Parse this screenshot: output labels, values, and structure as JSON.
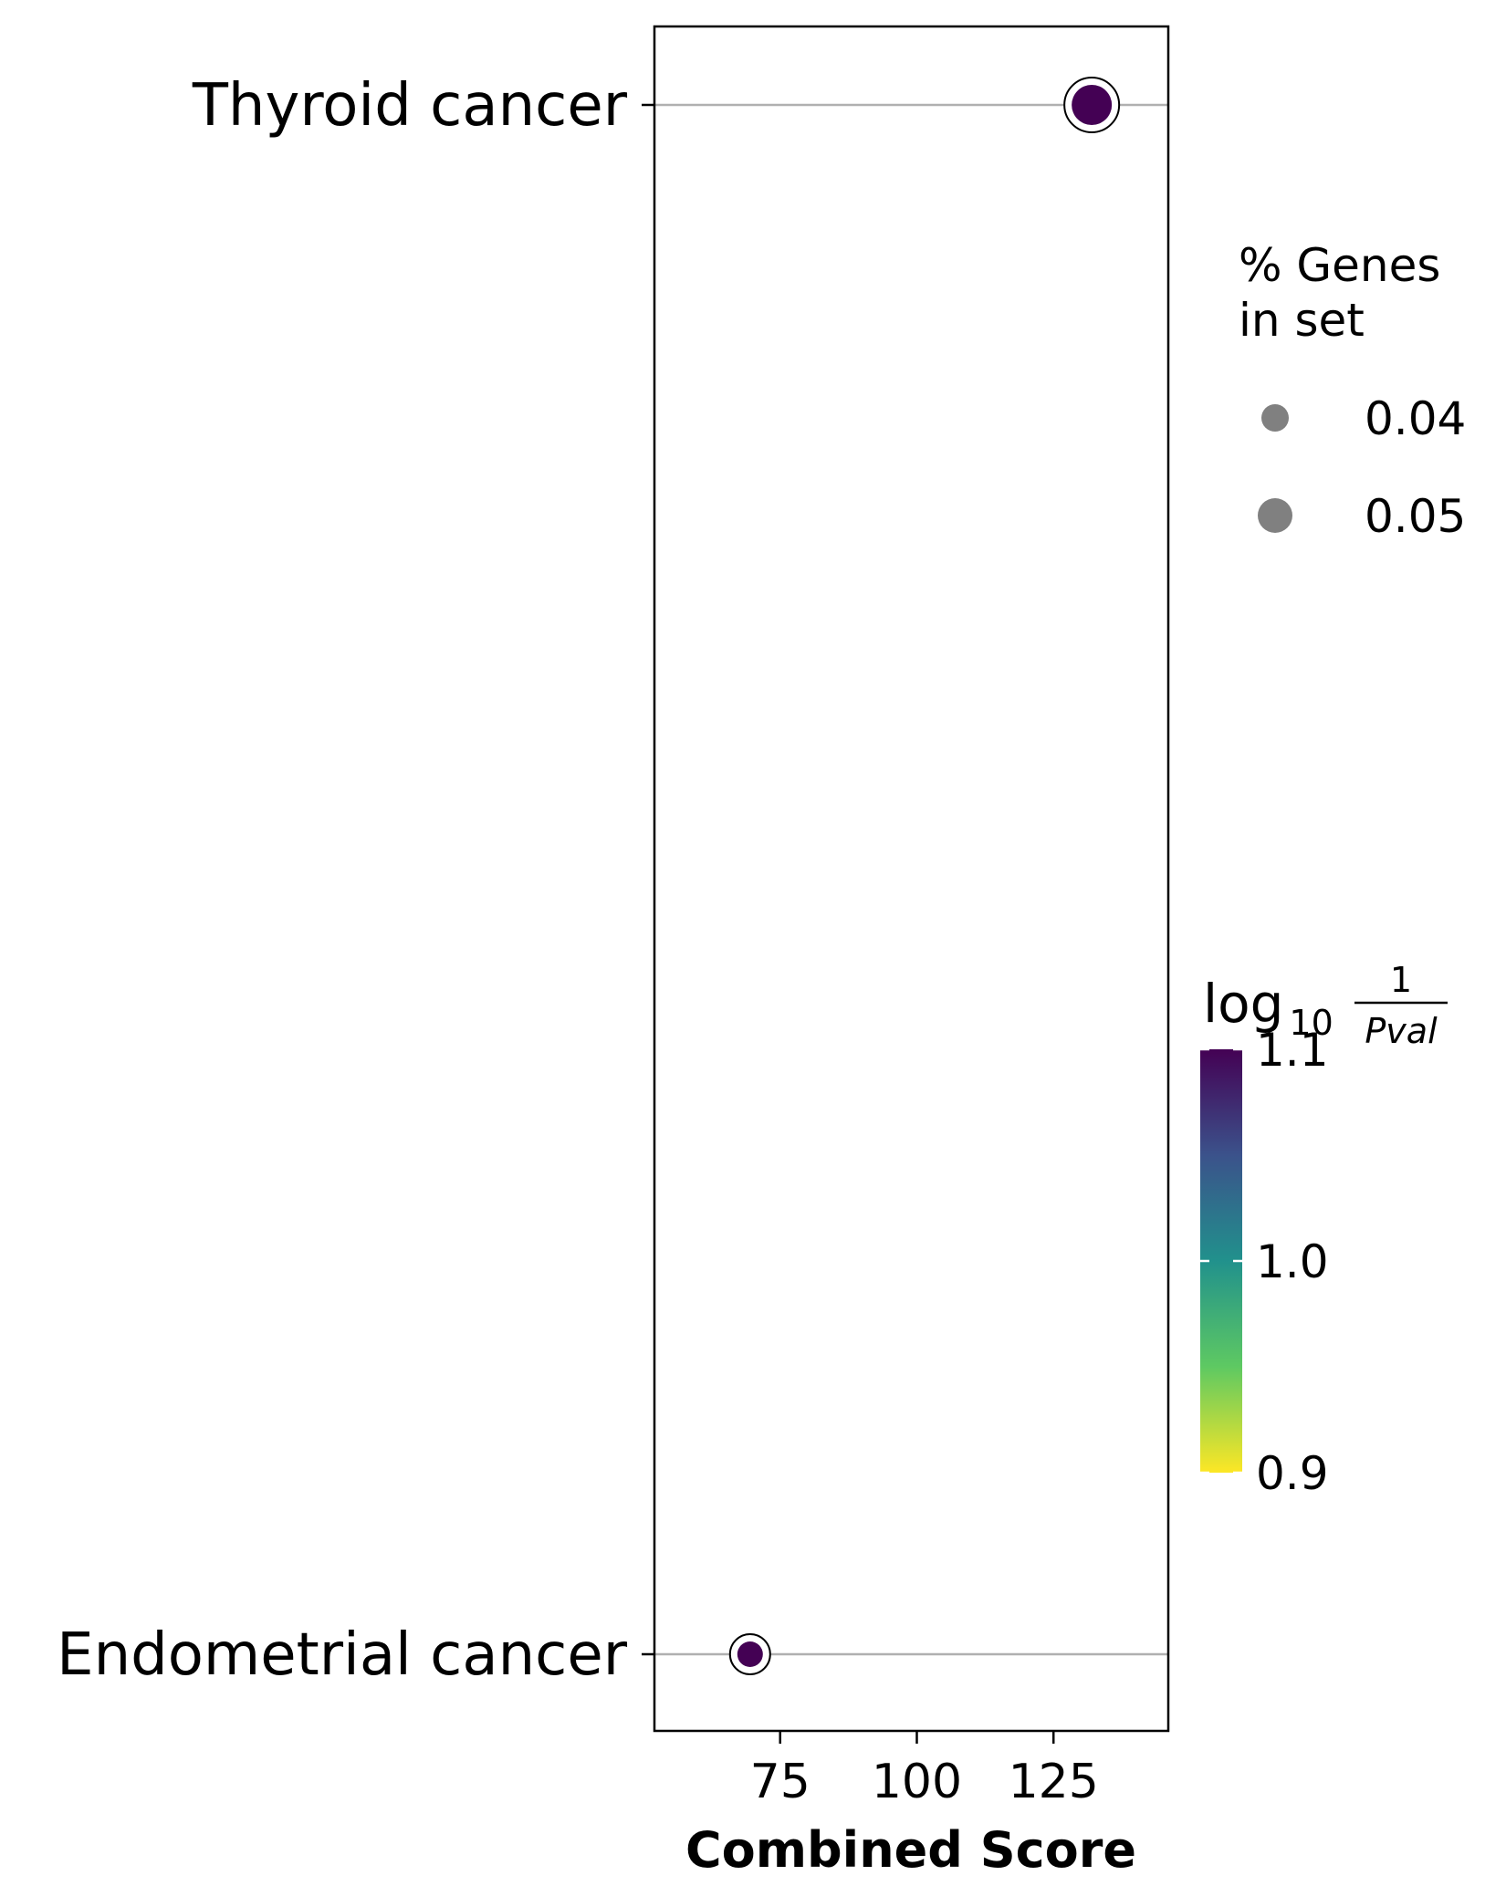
{
  "chart_data": {
    "type": "scatter",
    "xlabel": "Combined Score",
    "ylabel": "",
    "xlim": [
      52,
      146
    ],
    "xticks": [
      75,
      100,
      125
    ],
    "categories": [
      "Thyroid cancer",
      "Endometrial cancer"
    ],
    "points": [
      {
        "term": "Thyroid cancer",
        "combined_score": 132,
        "log10_inv_pval": 1.1,
        "pct_genes": 0.05
      },
      {
        "term": "Endometrial cancer",
        "combined_score": 69.5,
        "log10_inv_pval": 1.1,
        "pct_genes": 0.04
      }
    ],
    "grid": "horizontal",
    "size_legend": {
      "title_lines": [
        "% Genes",
        "in set"
      ],
      "entries": [
        {
          "label": "0.04",
          "value": 0.04
        },
        {
          "label": "0.05",
          "value": 0.05
        }
      ],
      "marker_color": "#808080",
      "placement": "right"
    },
    "colorbar": {
      "title_main": "log",
      "title_sub": "10",
      "title_numerator": "1",
      "title_denominator": "Pval",
      "min": 0.9,
      "max": 1.1,
      "ticks": [
        {
          "value": 1.1,
          "label": "1.1"
        },
        {
          "value": 1.0,
          "label": "1.0"
        },
        {
          "value": 0.9,
          "label": "0.9"
        }
      ],
      "colormap": "viridis_r",
      "placement": "right"
    }
  }
}
